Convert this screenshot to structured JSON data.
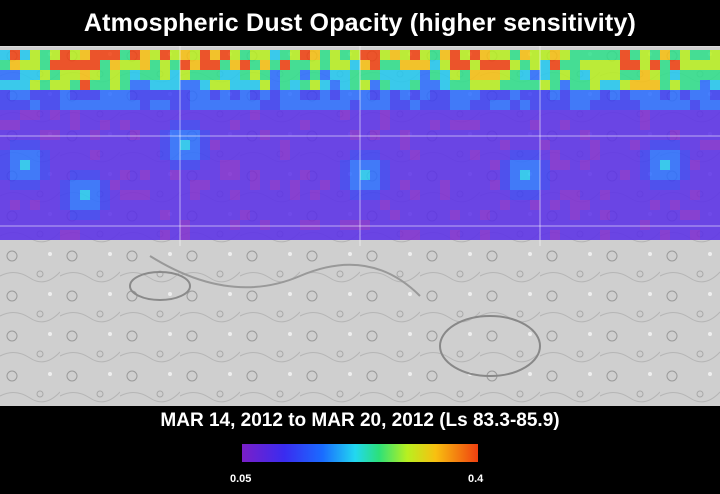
{
  "title": "Atmospheric Dust Opacity (higher sensitivity)",
  "date_range": "MAR 14, 2012 to MAR 20, 2012 (Ls 83.3-85.9)",
  "colorbar": {
    "min_label": "0.05",
    "max_label": "0.4",
    "colors": [
      "#7a1fc8",
      "#3a2cf0",
      "#1a6bff",
      "#22d8f0",
      "#2ce07a",
      "#b8f020",
      "#f8c010",
      "#f04010"
    ]
  }
}
